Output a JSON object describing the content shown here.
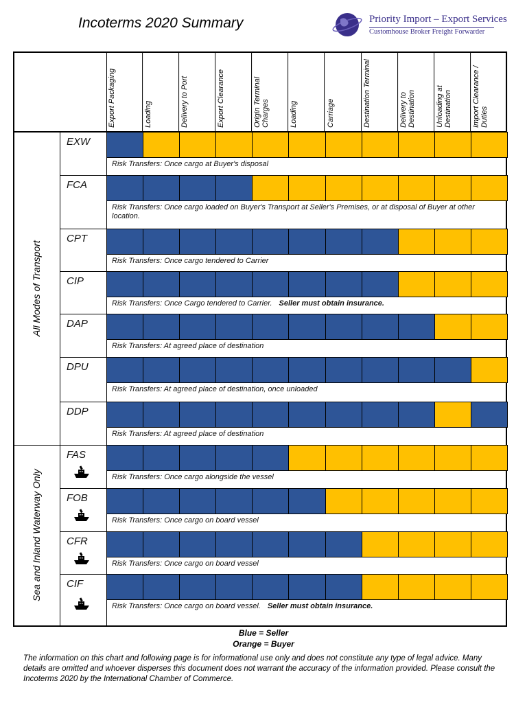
{
  "header": {
    "title": "Incoterms 2020 Summary",
    "company": "Priority Import – Export Services",
    "tagline": "Customhouse Broker Freight Forwarder"
  },
  "table": {
    "columns": [
      "Export Packaging",
      "Loading",
      "Delivery to Port",
      "Export Clearance",
      "Origin Terminal Charges",
      "Loading",
      "Carriage",
      "Destination Terminal",
      "Delivery to Destination",
      "Unloading at Destination",
      "Import Clearance / Duties"
    ],
    "groups": [
      {
        "label": "All Modes of Transport",
        "rows": [
          {
            "code": "EXW",
            "cells": [
              "#2e5597",
              "#ffc000",
              "#ffc000",
              "#ffc000",
              "#ffc000",
              "#ffc000",
              "#ffc000",
              "#ffc000",
              "#ffc000",
              "#ffc000",
              "#ffc000"
            ],
            "risk": "Risk Transfers: Once cargo at Buyer's disposal"
          },
          {
            "code": "FCA",
            "cells": [
              "#2e5597",
              "#2e5597",
              "#2e5597",
              "#2e5597",
              "#ffc000",
              "#ffc000",
              "#ffc000",
              "#ffc000",
              "#ffc000",
              "#ffc000",
              "#ffc000"
            ],
            "risk": "Risk Transfers: Once cargo loaded on Buyer's Transport at Seller's Premises, or at disposal of Buyer at other location."
          },
          {
            "code": "CPT",
            "cells": [
              "#2e5597",
              "#2e5597",
              "#2e5597",
              "#2e5597",
              "#2e5597",
              "#2e5597",
              "#2e5597",
              "#2e5597",
              "#ffc000",
              "#ffc000",
              "#ffc000"
            ],
            "risk": "Risk Transfers: Once cargo tendered to Carrier"
          },
          {
            "code": "CIP",
            "cells": [
              "#2e5597",
              "#2e5597",
              "#2e5597",
              "#2e5597",
              "#2e5597",
              "#2e5597",
              "#2e5597",
              "#2e5597",
              "#ffc000",
              "#ffc000",
              "#ffc000"
            ],
            "risk": "Risk Transfers: Once Cargo tendered to Carrier.",
            "note": "Seller must obtain insurance."
          },
          {
            "code": "DAP",
            "cells": [
              "#2e5597",
              "#2e5597",
              "#2e5597",
              "#2e5597",
              "#2e5597",
              "#2e5597",
              "#2e5597",
              "#2e5597",
              "#2e5597",
              "#ffc000",
              "#ffc000"
            ],
            "risk": "Risk Transfers: At agreed place of destination"
          },
          {
            "code": "DPU",
            "cells": [
              "#2e5597",
              "#2e5597",
              "#2e5597",
              "#2e5597",
              "#2e5597",
              "#2e5597",
              "#2e5597",
              "#2e5597",
              "#2e5597",
              "#2e5597",
              "#ffc000"
            ],
            "risk": "Risk Transfers: At agreed place of destination, once unloaded"
          },
          {
            "code": "DDP",
            "cells": [
              "#2e5597",
              "#2e5597",
              "#2e5597",
              "#2e5597",
              "#2e5597",
              "#2e5597",
              "#2e5597",
              "#2e5597",
              "#2e5597",
              "#ffc000",
              "#2e5597"
            ],
            "risk": "Risk Transfers: At agreed place of destination"
          }
        ]
      },
      {
        "label": "Sea and Inland Waterway Only",
        "rows": [
          {
            "code": "FAS",
            "cells": [
              "#2e5597",
              "#2e5597",
              "#2e5597",
              "#2e5597",
              "#2e5597",
              "#ffc000",
              "#ffc000",
              "#ffc000",
              "#ffc000",
              "#ffc000",
              "#ffc000"
            ],
            "risk": "Risk Transfers: Once cargo alongside the vessel"
          },
          {
            "code": "FOB",
            "cells": [
              "#2e5597",
              "#2e5597",
              "#2e5597",
              "#2e5597",
              "#2e5597",
              "#2e5597",
              "#ffc000",
              "#ffc000",
              "#ffc000",
              "#ffc000",
              "#ffc000"
            ],
            "risk": "Risk Transfers: Once cargo on board vessel"
          },
          {
            "code": "CFR",
            "cells": [
              "#2e5597",
              "#2e5597",
              "#2e5597",
              "#2e5597",
              "#2e5597",
              "#2e5597",
              "#2e5597",
              "#ffc000",
              "#ffc000",
              "#ffc000",
              "#ffc000"
            ],
            "risk": "Risk Transfers: Once cargo on board vessel"
          },
          {
            "code": "CIF",
            "cells": [
              "#2e5597",
              "#2e5597",
              "#2e5597",
              "#2e5597",
              "#2e5597",
              "#2e5597",
              "#2e5597",
              "#ffc000",
              "#ffc000",
              "#ffc000",
              "#ffc000"
            ],
            "risk": "Risk Transfers: Once cargo on board vessel.",
            "note": "Seller must obtain insurance."
          }
        ]
      }
    ]
  },
  "legend": [
    "Blue = Seller",
    "Orange = Buyer"
  ],
  "disclaimer": "The information on this chart and following page is for informational use only and does not constitute any type of legal advice. Many details are omitted and whoever disperses this document does not warrant the accuracy of the information provided. Please consult the Incoterms 2020 by the International Chamber of Commerce."
}
